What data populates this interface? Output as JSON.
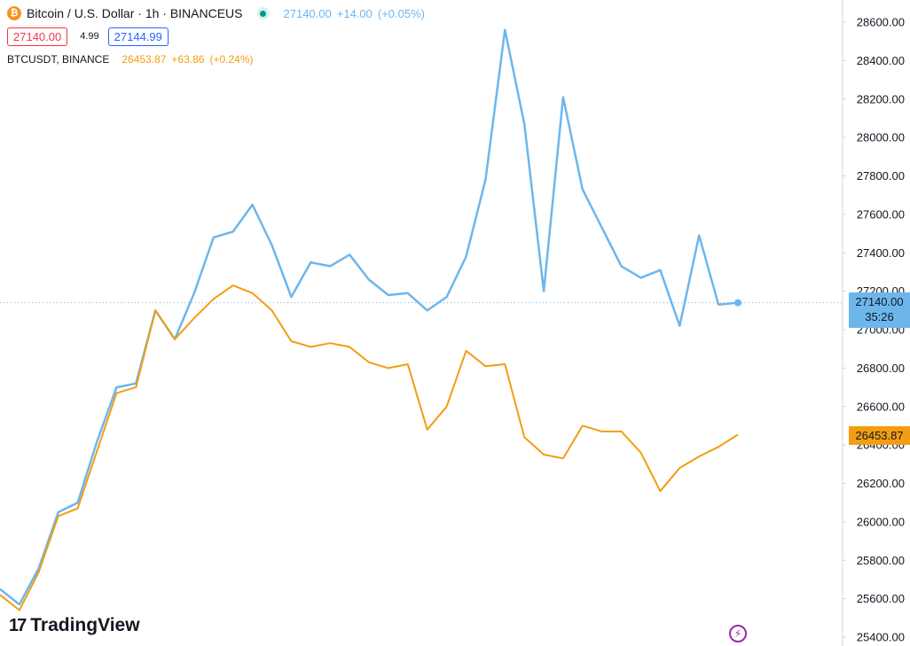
{
  "header": {
    "symbol_title": "Bitcoin / U.S. Dollar · 1h · BINANCEUS",
    "coin_glyph": "₿",
    "main_last": "27140.00",
    "main_change": "+14.00",
    "main_change_pct": "(+0.05%)",
    "sell_price": "27140.00",
    "spread": "4.99",
    "buy_price": "27144.99",
    "compare_symbol": "BTCUSDT, BINANCE",
    "compare_last": "26453.87",
    "compare_change": "+63.86",
    "compare_change_pct": "(+0.24%)"
  },
  "price_labels": {
    "main_price": "27140.00",
    "countdown": "35:26",
    "compare_price": "26453.87"
  },
  "brand": {
    "name": "TradingView",
    "mark": "17"
  },
  "colors": {
    "main_series": "#6db6ec",
    "compare_series": "#f29d12",
    "sell": "#f23645",
    "buy": "#2962ff",
    "live_dot": "#089981",
    "accent_icon": "#9c27b0"
  },
  "icons": [
    "bitcoin-icon",
    "live-status-icon",
    "bolt-icon",
    "tradingview-logo-icon"
  ],
  "chart_data": {
    "type": "line",
    "x_index": [
      0,
      1,
      2,
      3,
      4,
      5,
      6,
      7,
      8,
      9,
      10,
      11,
      12,
      13,
      14,
      15,
      16,
      17,
      18,
      19,
      20,
      21,
      22,
      23,
      24,
      25,
      26,
      27,
      28,
      29,
      30,
      31,
      32,
      33,
      34,
      35,
      36,
      37,
      38
    ],
    "series": [
      {
        "name": "Bitcoin / U.S. Dollar · 1h · BINANCEUS",
        "color": "#6db6ec",
        "values": [
          25650,
          25570,
          25760,
          26050,
          26100,
          26420,
          26700,
          26720,
          27100,
          26950,
          27190,
          27480,
          27510,
          27650,
          27440,
          27170,
          27350,
          27330,
          27390,
          27260,
          27180,
          27190,
          27100,
          27170,
          27380,
          27780,
          28560,
          28070,
          27200,
          28210,
          27730,
          27530,
          27330,
          27270,
          27310,
          27020,
          27490,
          27130,
          27140
        ]
      },
      {
        "name": "BTCUSDT, BINANCE",
        "color": "#f29d12",
        "values": [
          25620,
          25540,
          25740,
          26030,
          26070,
          26370,
          26670,
          26700,
          27100,
          26950,
          27060,
          27160,
          27230,
          27190,
          27100,
          26940,
          26910,
          26930,
          26910,
          26830,
          26800,
          26820,
          26480,
          26600,
          26890,
          26810,
          26820,
          26440,
          26350,
          26330,
          26500,
          26470,
          26470,
          26360,
          26160,
          26280,
          26340,
          26390,
          26453.87
        ]
      }
    ],
    "y_ticks": [
      25400,
      25600,
      25800,
      26000,
      26200,
      26400,
      26600,
      26800,
      27000,
      27200,
      27400,
      27600,
      27800,
      28000,
      28200,
      28400,
      28600
    ],
    "y_tick_labels": [
      "25400.00",
      "25600.00",
      "25800.00",
      "26000.00",
      "26200.00",
      "26400.00",
      "26600.00",
      "26800.00",
      "27000.00",
      "27200.00",
      "27400.00",
      "27600.00",
      "27800.00",
      "28000.00",
      "28200.00",
      "28400.00",
      "28600.00"
    ],
    "ylim": [
      25400,
      28650
    ],
    "current_price_line": 27140,
    "grid": false,
    "axis_position": "right"
  }
}
